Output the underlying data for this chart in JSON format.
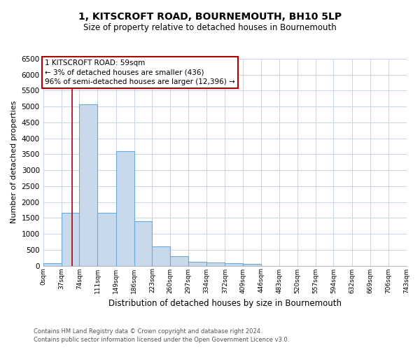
{
  "title": "1, KITSCROFT ROAD, BOURNEMOUTH, BH10 5LP",
  "subtitle": "Size of property relative to detached houses in Bournemouth",
  "xlabel": "Distribution of detached houses by size in Bournemouth",
  "ylabel": "Number of detached properties",
  "bar_edges": [
    0,
    37,
    74,
    111,
    149,
    186,
    223,
    260,
    297,
    334,
    372,
    409,
    446,
    483,
    520,
    557,
    594,
    632,
    669,
    706,
    743
  ],
  "bar_heights": [
    70,
    1650,
    5080,
    1670,
    3590,
    1390,
    610,
    290,
    130,
    110,
    80,
    50,
    0,
    0,
    0,
    0,
    0,
    0,
    0,
    0
  ],
  "bar_facecolor": "#c9d9ec",
  "bar_edgecolor": "#6aaad4",
  "vline_x": 59,
  "vline_color": "#aa0000",
  "ylim": [
    0,
    6500
  ],
  "grid_color": "#c8d4e8",
  "annotation_line1": "1 KITSCROFT ROAD: 59sqm",
  "annotation_line2": "← 3% of detached houses are smaller (436)",
  "annotation_line3": "96% of semi-detached houses are larger (12,396) →",
  "annotation_box_facecolor": "#ffffff",
  "annotation_box_edgecolor": "#aa0000",
  "footer_line1": "Contains HM Land Registry data © Crown copyright and database right 2024.",
  "footer_line2": "Contains public sector information licensed under the Open Government Licence v3.0.",
  "tick_labels": [
    "0sqm",
    "37sqm",
    "74sqm",
    "111sqm",
    "149sqm",
    "186sqm",
    "223sqm",
    "260sqm",
    "297sqm",
    "334sqm",
    "372sqm",
    "409sqm",
    "446sqm",
    "483sqm",
    "520sqm",
    "557sqm",
    "594sqm",
    "632sqm",
    "669sqm",
    "706sqm",
    "743sqm"
  ],
  "yticks": [
    0,
    500,
    1000,
    1500,
    2000,
    2500,
    3000,
    3500,
    4000,
    4500,
    5000,
    5500,
    6000,
    6500
  ],
  "bg_color": "#ffffff"
}
